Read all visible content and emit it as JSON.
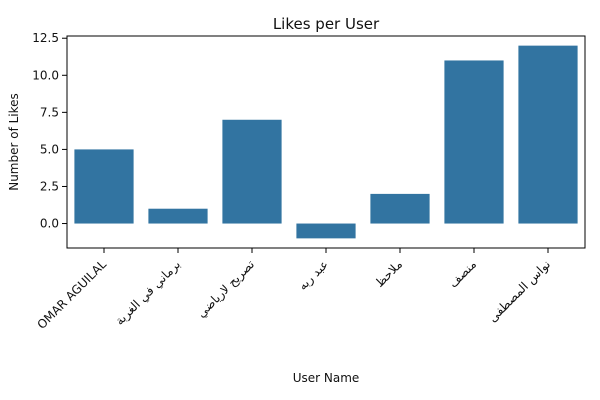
{
  "chart_data": {
    "type": "bar",
    "title": "Likes per User",
    "xlabel": "User Name",
    "ylabel": "Number of Likes",
    "categories": [
      "OMAR AGUILAL",
      "برماني في الغربة",
      "تصريح لارياضي",
      "عبد ربه",
      "ملاحظ",
      "منصف",
      "نواس المصطفى"
    ],
    "values": [
      5,
      1,
      7,
      -1,
      2,
      11,
      12
    ],
    "ylim": [
      -1.65,
      12.65
    ],
    "yticks": [
      0.0,
      2.5,
      5.0,
      7.5,
      10.0,
      12.5
    ],
    "ytick_labels": [
      "0.0",
      "2.5",
      "5.0",
      "7.5",
      "10.0",
      "12.5"
    ],
    "grid": false,
    "legend": "none",
    "bar_color": "#3274a1"
  }
}
